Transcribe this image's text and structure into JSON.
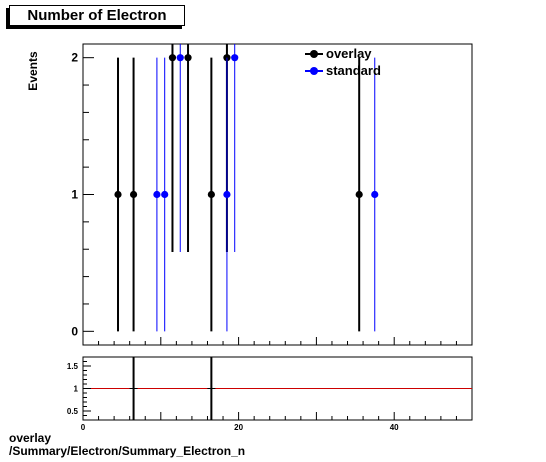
{
  "title": "Number of Electron",
  "footer": {
    "line1": "overlay",
    "line2": "/Summary/Electron/Summary_Electron_n"
  },
  "chart_data": [
    {
      "type": "scatter",
      "title": "Number of Electron",
      "xlabel": "",
      "ylabel": "Events",
      "xlim": [
        0,
        50
      ],
      "ylim": [
        -0.1,
        2.1
      ],
      "yticks": [
        0,
        1,
        2
      ],
      "legend_position": "top-right",
      "series": [
        {
          "name": "overlay",
          "color": "#000000",
          "x": [
            4.5,
            6.5,
            11.5,
            13.5,
            16.5,
            18.5,
            35.5
          ],
          "y": [
            1,
            1,
            2,
            2,
            1,
            2,
            1
          ],
          "err": [
            1,
            1,
            1.42,
            1.42,
            1,
            1.42,
            1
          ]
        },
        {
          "name": "standard",
          "color": "#0000ff",
          "x": [
            9.5,
            10.5,
            12.5,
            18.5,
            19.5,
            37.5
          ],
          "y": [
            1,
            1,
            2,
            1,
            2,
            1
          ],
          "err": [
            1,
            1,
            1.42,
            1,
            1.42,
            1
          ]
        }
      ]
    },
    {
      "type": "scatter",
      "title": "",
      "xlabel": "",
      "ylabel": "",
      "xlim": [
        0,
        50
      ],
      "ylim": [
        0.3,
        1.7
      ],
      "yticks": [
        0.5,
        1,
        1.5
      ],
      "ytick_labels": [
        "0.5",
        "1",
        "1.5"
      ],
      "xticks": [
        0,
        20,
        40
      ],
      "xtick_labels": [
        "0",
        "20",
        "40"
      ],
      "reference_line": 1,
      "reference_color": "#cc0000",
      "series": [
        {
          "name": "",
          "color": "#000000",
          "x": [
            6.5,
            16.5
          ],
          "y": [
            1,
            1
          ],
          "err": [
            1.42,
            1.42
          ]
        }
      ]
    }
  ]
}
